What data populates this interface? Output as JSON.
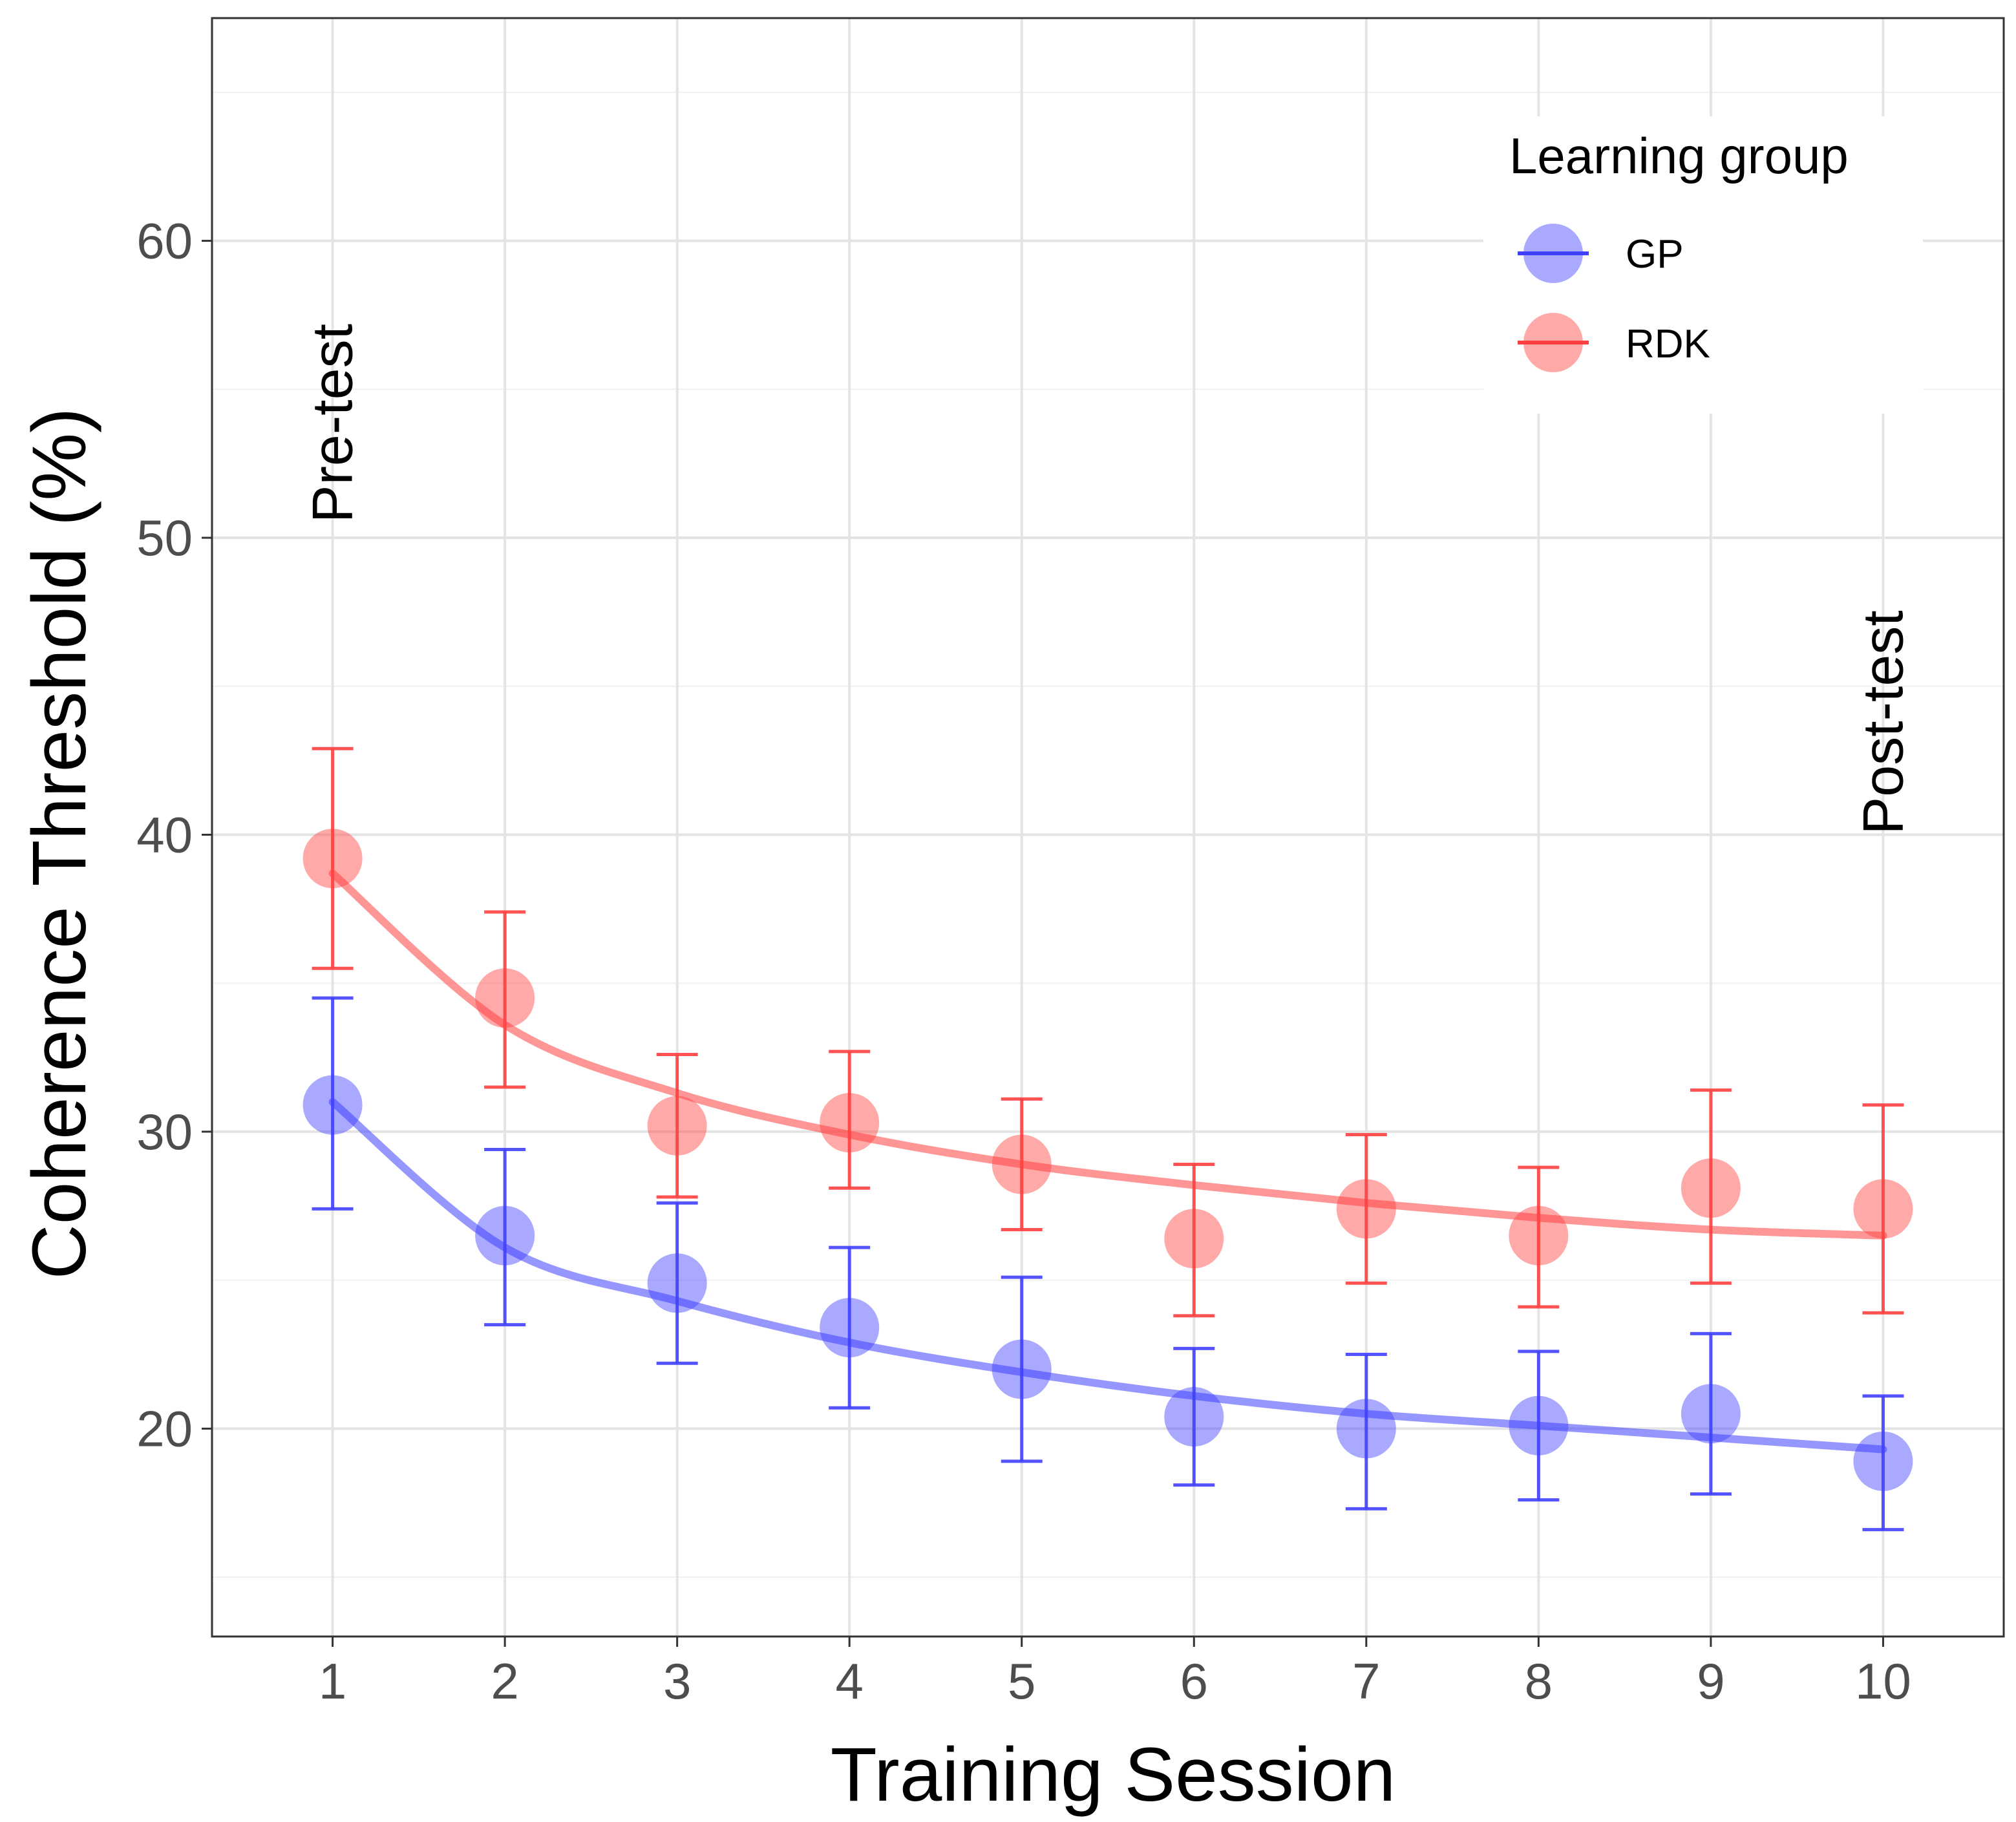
{
  "chart_data": {
    "type": "scatter",
    "title": "",
    "xlabel": "Training Session",
    "ylabel": "Coherence Threshold (%)",
    "xlim": [
      0.3,
      10.7
    ],
    "ylim": [
      13,
      67.5
    ],
    "x_ticks": [
      1,
      2,
      3,
      4,
      5,
      6,
      7,
      8,
      9,
      10
    ],
    "y_ticks": [
      20,
      30,
      40,
      50,
      60
    ],
    "grid": true,
    "legend": {
      "title": "Learning group",
      "position": "top-right"
    },
    "annotations": [
      {
        "label": "Pre-test",
        "x": 1,
        "y": 50.5
      },
      {
        "label": "Post-test",
        "x": 10,
        "y": 40
      }
    ],
    "series": [
      {
        "name": "GP",
        "color": "#4040ff",
        "x": [
          1,
          2,
          3,
          4,
          5,
          6,
          7,
          8,
          9,
          10
        ],
        "values": [
          30.9,
          26.5,
          24.9,
          23.4,
          22.0,
          20.4,
          20.0,
          20.1,
          20.5,
          18.9
        ],
        "error_lower": [
          27.4,
          23.5,
          22.2,
          20.7,
          18.9,
          18.1,
          17.3,
          17.6,
          17.8,
          16.6
        ],
        "error_upper": [
          34.5,
          29.4,
          27.6,
          26.1,
          25.1,
          22.7,
          22.5,
          22.6,
          23.2,
          21.1
        ],
        "fit": [
          31.0,
          26.1,
          24.3,
          22.9,
          21.9,
          21.1,
          20.5,
          20.1,
          19.7,
          19.3
        ]
      },
      {
        "name": "RDK",
        "color": "#ff4040",
        "x": [
          1,
          2,
          3,
          4,
          5,
          6,
          7,
          8,
          9,
          10
        ],
        "values": [
          39.2,
          34.5,
          30.2,
          30.3,
          28.9,
          26.4,
          27.4,
          26.5,
          28.1,
          27.4
        ],
        "error_lower": [
          35.5,
          31.5,
          27.8,
          28.1,
          26.7,
          23.8,
          24.9,
          24.1,
          24.9,
          23.9
        ],
        "error_upper": [
          42.9,
          37.4,
          32.6,
          32.7,
          31.1,
          28.9,
          29.9,
          28.8,
          31.4,
          30.9
        ],
        "fit": [
          38.7,
          33.6,
          31.3,
          29.9,
          28.9,
          28.2,
          27.6,
          27.1,
          26.7,
          26.5
        ]
      }
    ]
  }
}
